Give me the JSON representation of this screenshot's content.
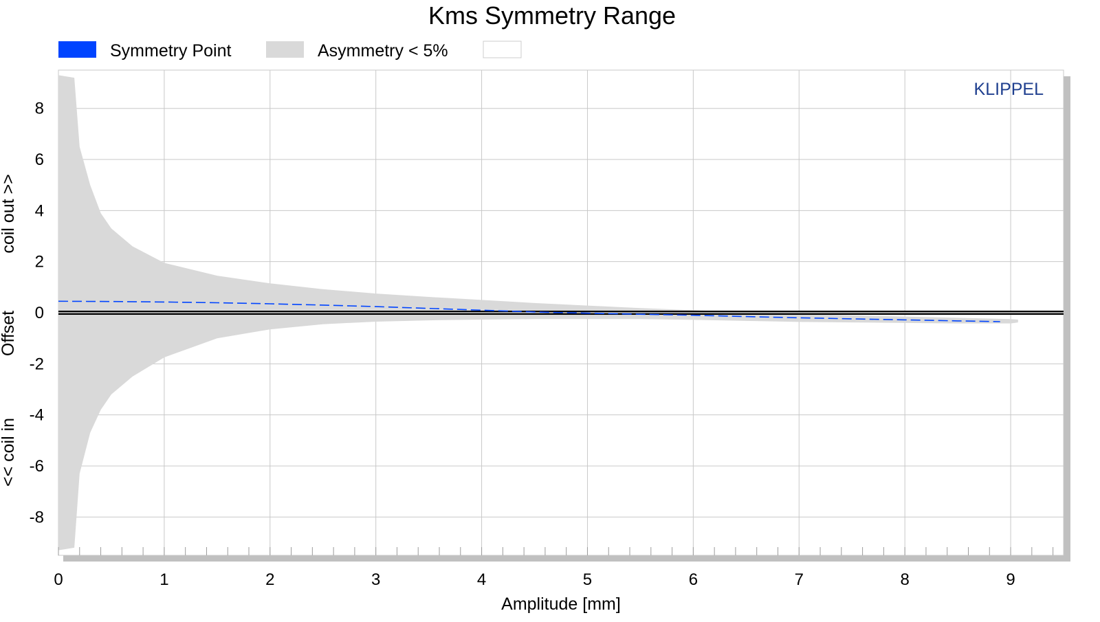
{
  "chart_data": {
    "type": "area",
    "title": "Kms Symmetry Range",
    "xlabel": "Amplitude [mm]",
    "ylabel_parts": [
      "<< coil in",
      "Offset",
      "coil out >>"
    ],
    "xlim": [
      0,
      9.5
    ],
    "ylim": [
      -9.5,
      9.5
    ],
    "x_ticks": [
      0,
      1,
      2,
      3,
      4,
      5,
      6,
      7,
      8,
      9
    ],
    "y_ticks": [
      -8,
      -6,
      -4,
      -2,
      0,
      2,
      4,
      6,
      8
    ],
    "grid": true,
    "legend_position": "top",
    "watermark": "KLIPPEL",
    "colors": {
      "symmetry_point": "#0044ff",
      "asymmetry_band": "#d9d9d9",
      "zero_line": "#000000",
      "grid": "#c8c8c8",
      "watermark": "#1f3f8f"
    },
    "legend": [
      {
        "name": "Symmetry Point",
        "color": "#0044ff"
      },
      {
        "name": "Asymmetry < 5%",
        "color": "#d9d9d9"
      },
      {
        "name": "",
        "color": "#ffffff"
      }
    ],
    "series": [
      {
        "name": "Asymmetry < 5%",
        "kind": "band",
        "x": [
          0.0,
          0.15,
          0.2,
          0.3,
          0.4,
          0.5,
          0.7,
          1.0,
          1.5,
          2.0,
          2.5,
          3.0,
          3.5,
          4.0,
          4.5,
          5.0,
          5.5,
          6.0,
          6.5,
          7.0,
          7.5,
          8.0,
          8.5,
          9.0,
          9.07
        ],
        "upper": [
          9.3,
          9.2,
          6.5,
          5.0,
          3.9,
          3.3,
          2.6,
          1.95,
          1.45,
          1.15,
          0.92,
          0.75,
          0.62,
          0.5,
          0.38,
          0.28,
          0.18,
          0.1,
          0.02,
          -0.05,
          -0.1,
          -0.15,
          -0.2,
          -0.25,
          -0.27
        ],
        "lower": [
          -9.3,
          -9.2,
          -6.3,
          -4.7,
          -3.8,
          -3.2,
          -2.5,
          -1.75,
          -1.0,
          -0.65,
          -0.45,
          -0.35,
          -0.3,
          -0.27,
          -0.25,
          -0.25,
          -0.25,
          -0.28,
          -0.32,
          -0.36,
          -0.38,
          -0.4,
          -0.42,
          -0.42,
          -0.38
        ]
      },
      {
        "name": "Symmetry Point",
        "kind": "line",
        "x": [
          0.0,
          0.5,
          1.0,
          1.5,
          2.0,
          2.5,
          3.0,
          3.5,
          4.0,
          4.5,
          5.0,
          5.5,
          6.0,
          6.5,
          7.0,
          7.5,
          8.0,
          8.5,
          8.9
        ],
        "values": [
          0.45,
          0.44,
          0.42,
          0.39,
          0.35,
          0.3,
          0.24,
          0.17,
          0.1,
          0.03,
          -0.02,
          -0.06,
          -0.1,
          -0.15,
          -0.2,
          -0.24,
          -0.28,
          -0.32,
          -0.35
        ]
      }
    ]
  }
}
